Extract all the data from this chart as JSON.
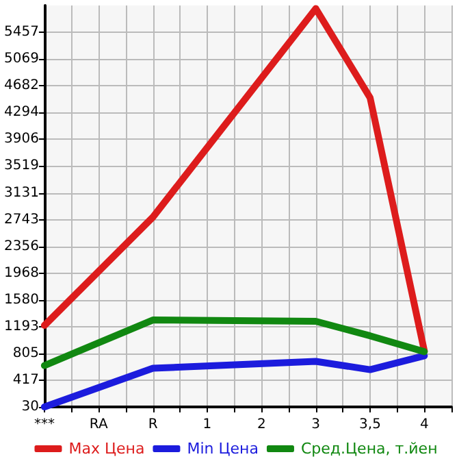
{
  "chart_data": {
    "type": "line",
    "categories": [
      "***",
      "RA",
      "R",
      "1",
      "2",
      "3",
      "3,5",
      "4"
    ],
    "series": [
      {
        "name": "Max Цена",
        "color": "#dd1c1c",
        "values": [
          1210,
          null,
          2780,
          null,
          null,
          5800,
          4510,
          840
        ]
      },
      {
        "name": "Min Цена",
        "color": "#1c1cdd",
        "values": [
          30,
          null,
          590,
          null,
          null,
          690,
          570,
          770
        ]
      },
      {
        "name": "Сред.Цена, т.йен",
        "color": "#118811",
        "values": [
          630,
          null,
          1290,
          null,
          null,
          1270,
          1060,
          830
        ]
      }
    ],
    "ylim": [
      30,
      5845
    ],
    "yticks": [
      30,
      417,
      805,
      1193,
      1580,
      1968,
      2356,
      2743,
      3131,
      3519,
      3906,
      4294,
      4682,
      5069,
      5457
    ],
    "grid": true,
    "legend": "bottom",
    "marker": "none",
    "line_style": "solid"
  }
}
